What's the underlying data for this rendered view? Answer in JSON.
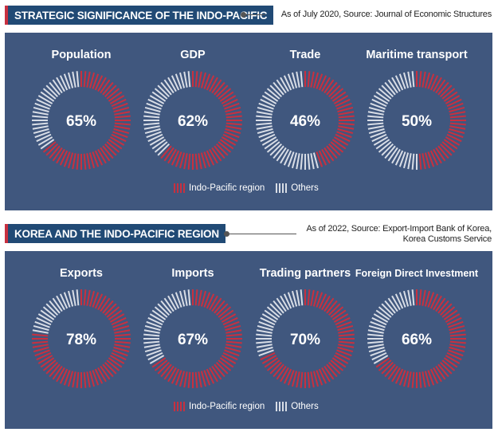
{
  "sections": [
    {
      "title_part1": "STRATEGIC SIGNIFICANCE OF THE INDO-PACIFIC",
      "title_part2": "",
      "source_lines": [
        "As of July 2020, Source: Journal of Economic Structures"
      ],
      "legend": {
        "indo": "Indo-Pacific region",
        "others": "Others"
      }
    },
    {
      "title_part1": "KOREA AND THE INDO-PACIFIC REGION",
      "title_part2": "",
      "source_lines": [
        "As of 2022, Source: Export-Import Bank of Korea,",
        "Korea Customs Service"
      ],
      "legend": {
        "indo": "Indo-Pacific region",
        "others": "Others"
      }
    }
  ],
  "colors": {
    "indo": "#c8303f",
    "others": "#d8dde6",
    "panel": "#40577e",
    "header": "#214a75"
  },
  "chart_data": [
    {
      "type": "pie",
      "title": "STRATEGIC SIGNIFICANCE OF THE INDO-PACIFIC",
      "categories": [
        "Population",
        "GDP",
        "Trade",
        "Maritime transport"
      ],
      "series": [
        {
          "name": "Indo-Pacific region",
          "values": [
            65,
            62,
            46,
            50
          ]
        },
        {
          "name": "Others",
          "values": [
            35,
            38,
            54,
            50
          ]
        }
      ],
      "data_labels": [
        "65%",
        "62%",
        "46%",
        "50%"
      ]
    },
    {
      "type": "pie",
      "title": "KOREA AND THE INDO-PACIFIC REGION",
      "categories": [
        "Exports",
        "Imports",
        "Trading partners",
        "Foreign Direct Investment"
      ],
      "series": [
        {
          "name": "Indo-Pacific region",
          "values": [
            78,
            67,
            70,
            66
          ]
        },
        {
          "name": "Others",
          "values": [
            22,
            33,
            30,
            34
          ]
        }
      ],
      "data_labels": [
        "78%",
        "67%",
        "70%",
        "66%"
      ]
    }
  ]
}
